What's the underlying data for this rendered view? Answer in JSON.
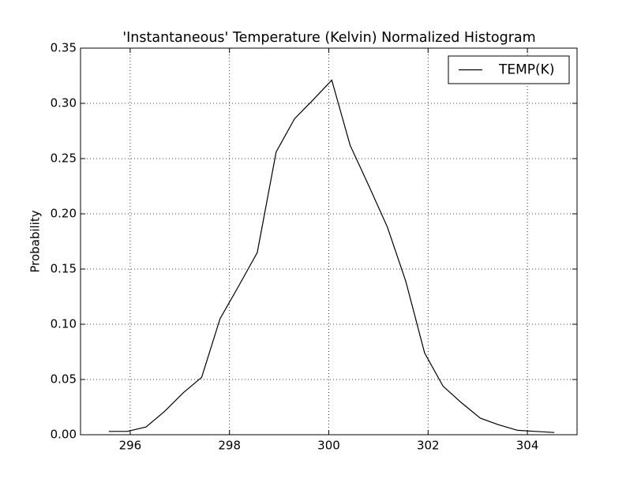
{
  "chart_data": {
    "type": "line",
    "title": "'Instantaneous' Temperature (Kelvin) Normalized Histogram",
    "y_label": "Probability",
    "x": [
      295.57,
      295.94,
      296.32,
      296.69,
      297.07,
      297.44,
      297.81,
      298.19,
      298.56,
      298.94,
      299.31,
      299.68,
      300.06,
      300.43,
      300.8,
      301.18,
      301.55,
      301.93,
      302.3,
      302.67,
      303.05,
      303.42,
      303.8,
      304.17,
      304.54
    ],
    "series": [
      {
        "name": "TEMP(K)",
        "color": "#000000",
        "values": [
          0.003,
          0.003,
          0.007,
          0.021,
          0.038,
          0.052,
          0.105,
          0.135,
          0.165,
          0.256,
          0.286,
          0.303,
          0.321,
          0.262,
          0.226,
          0.188,
          0.139,
          0.074,
          0.044,
          0.029,
          0.015,
          0.009,
          0.004,
          0.003,
          0.002
        ]
      }
    ],
    "xlim": [
      295,
      305
    ],
    "xticks": [
      296,
      298,
      300,
      302,
      304
    ],
    "ylim": [
      0,
      0.35
    ],
    "yticks": [
      {
        "value": 0,
        "label": "0.00"
      },
      0.05,
      {
        "value": 0.1,
        "label": "0.10"
      },
      0.15,
      {
        "value": 0.2,
        "label": "0.20"
      },
      0.25,
      {
        "value": 0.3,
        "label": "0.30"
      },
      0.35
    ],
    "grid": true,
    "legend": "upper-right"
  }
}
